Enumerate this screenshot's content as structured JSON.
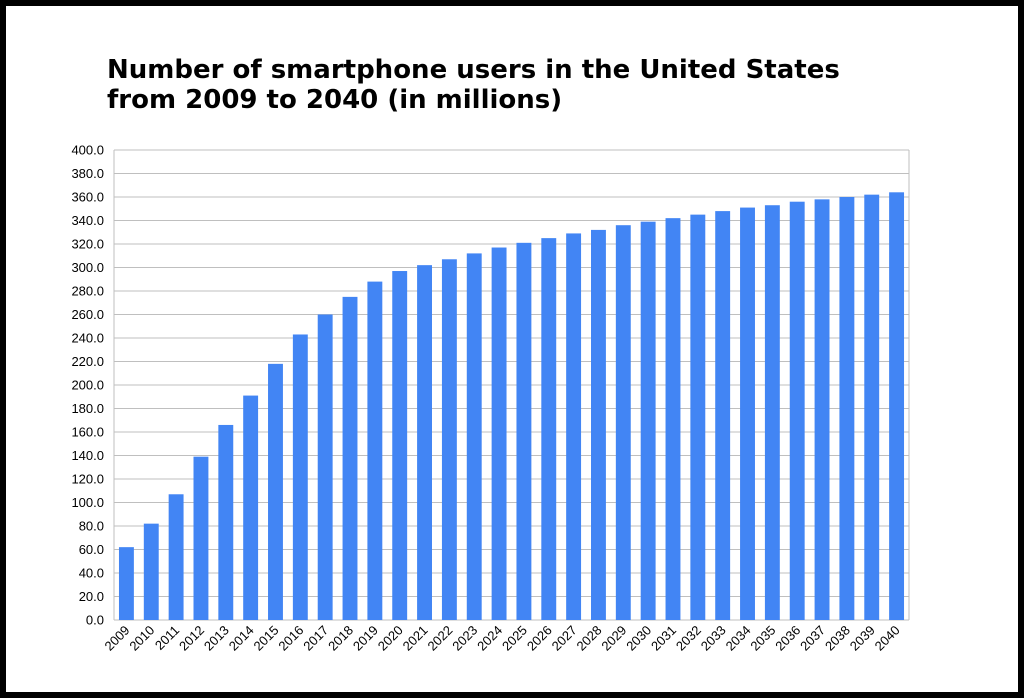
{
  "chart_data": {
    "type": "bar",
    "title": "Number of smartphone users in the United States\nfrom 2009 to 2040 (in millions)",
    "xlabel": "",
    "ylabel": "",
    "ylim": [
      0,
      400
    ],
    "y_ticks": [
      "0.0",
      "20.0",
      "40.0",
      "60.0",
      "80.0",
      "100.0",
      "120.0",
      "140.0",
      "160.0",
      "180.0",
      "200.0",
      "220.0",
      "240.0",
      "260.0",
      "280.0",
      "300.0",
      "320.0",
      "340.0",
      "360.0",
      "380.0",
      "400.0"
    ],
    "grid": true,
    "categories": [
      "2009",
      "2010",
      "2011",
      "2012",
      "2013",
      "2014",
      "2015",
      "2016",
      "2017",
      "2018",
      "2019",
      "2020",
      "2021",
      "2022",
      "2023",
      "2024",
      "2025",
      "2026",
      "2027",
      "2028",
      "2029",
      "2030",
      "2031",
      "2032",
      "2033",
      "2034",
      "2035",
      "2036",
      "2037",
      "2038",
      "2039",
      "2040"
    ],
    "values": [
      62,
      82,
      107,
      139,
      166,
      191,
      218,
      243,
      260,
      275,
      288,
      297,
      302,
      307,
      312,
      317,
      321,
      325,
      329,
      332,
      336,
      339,
      342,
      345,
      348,
      351,
      353,
      356,
      358,
      360,
      362,
      364
    ],
    "colors": {
      "bar": "#4285f4",
      "grid": "#bfbfbf",
      "border": "#bfbfbf"
    }
  }
}
